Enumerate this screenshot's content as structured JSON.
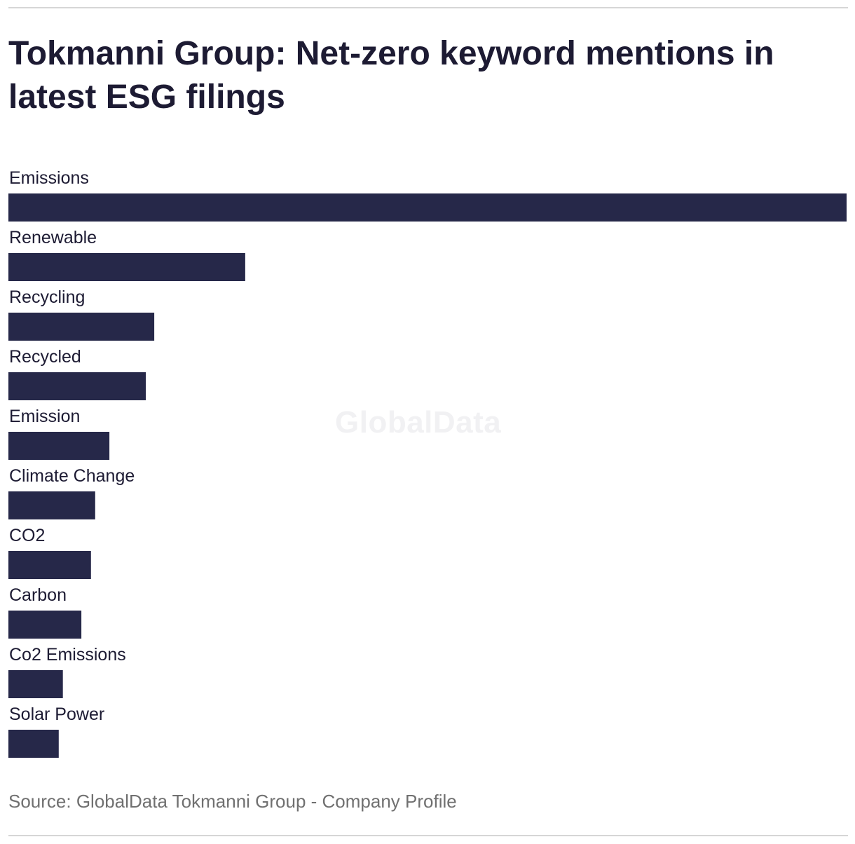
{
  "header": {
    "title": "Tokmanni Group: Net-zero keyword mentions in latest ESG filings"
  },
  "watermark": "GlobalData",
  "footer": {
    "source": "Source: GlobalData Tokmanni Group - Company Profile"
  },
  "colors": {
    "bar": "#262849",
    "rule": "#d6d6d6"
  },
  "chart_data": {
    "type": "bar",
    "orientation": "horizontal",
    "categories": [
      "Emissions",
      "Renewable",
      "Recycling",
      "Recycled",
      "Emission",
      "Climate Change",
      "CO2",
      "Carbon",
      "Co2 Emissions",
      "Solar Power"
    ],
    "values": [
      200,
      56.5,
      34.8,
      32.8,
      24.1,
      20.7,
      19.7,
      17.4,
      13.0,
      12.0
    ],
    "xlim": [
      0,
      200
    ],
    "grid": false,
    "legend": "none"
  }
}
